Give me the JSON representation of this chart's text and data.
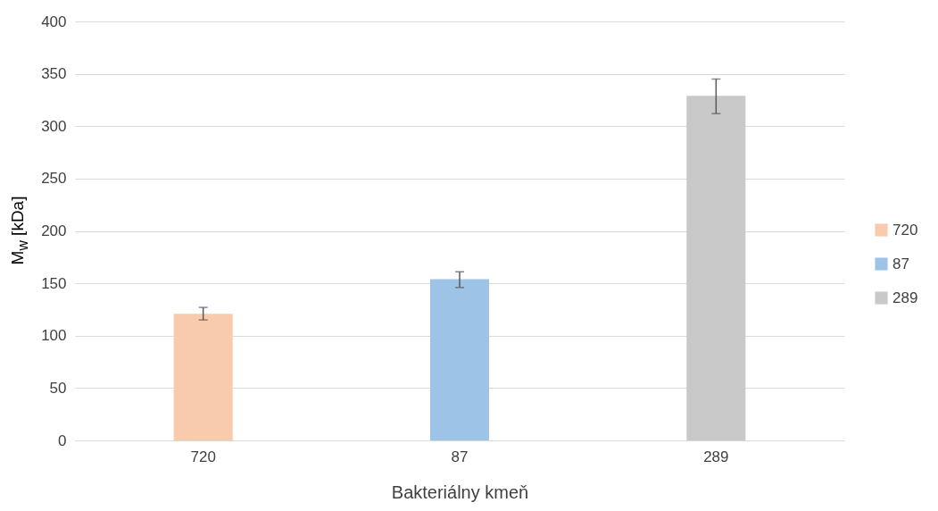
{
  "chart_data": {
    "type": "bar",
    "xlabel": "Bakteriálny kmeň",
    "ylabel": "M$_{w}$ [kDa]",
    "categories": [
      "720",
      "87",
      "289"
    ],
    "series": [
      {
        "name": "720",
        "color": "#f8cbad",
        "values": [
          121,
          null,
          null
        ],
        "errors": [
          [
            115,
            127
          ],
          null,
          null
        ]
      },
      {
        "name": "87",
        "color": "#9dc3e6",
        "values": [
          null,
          154,
          null
        ],
        "errors": [
          null,
          [
            146,
            161
          ],
          null
        ]
      },
      {
        "name": "289",
        "color": "#c9c9c9",
        "values": [
          null,
          null,
          329
        ],
        "errors": [
          null,
          null,
          [
            312,
            345
          ]
        ]
      }
    ],
    "ylim": [
      0,
      400
    ],
    "yticks": [
      0,
      50,
      100,
      150,
      200,
      250,
      300,
      350,
      400
    ],
    "grid": "y",
    "legend": "right"
  }
}
